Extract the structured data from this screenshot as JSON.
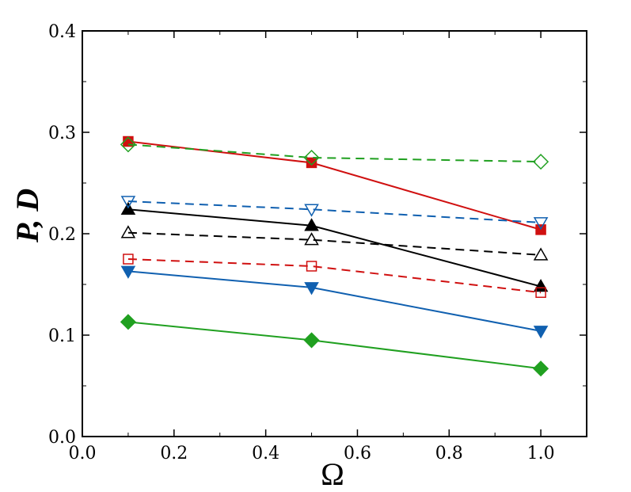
{
  "chart_data": {
    "type": "line",
    "title": "",
    "xlabel": "Ω",
    "ylabel": "P, D",
    "xlim": [
      0.0,
      1.1
    ],
    "ylim": [
      0.0,
      0.4
    ],
    "xticks": [
      0.0,
      0.2,
      0.4,
      0.6,
      0.8,
      1.0
    ],
    "yticks": [
      0.0,
      0.1,
      0.2,
      0.3,
      0.4
    ],
    "xtick_labels": [
      "0.0",
      "0.2",
      "0.4",
      "0.6",
      "0.8",
      "1.0"
    ],
    "ytick_labels": [
      "0.0",
      "0.1",
      "0.2",
      "0.3",
      "0.4"
    ],
    "x": [
      0.1,
      0.5,
      1.0
    ],
    "grid": false,
    "legend": "none",
    "series": [
      {
        "name": "red-solid-filled-square",
        "color": "#d01010",
        "dash": "solid",
        "marker": "square",
        "filled": true,
        "values": [
          0.291,
          0.27,
          0.204
        ]
      },
      {
        "name": "black-solid-filled-triangle-up",
        "color": "#000000",
        "dash": "solid",
        "marker": "triangle-up",
        "filled": true,
        "values": [
          0.224,
          0.208,
          0.148
        ]
      },
      {
        "name": "blue-solid-filled-triangle-down",
        "color": "#1060b0",
        "dash": "solid",
        "marker": "triangle-down",
        "filled": true,
        "values": [
          0.163,
          0.147,
          0.104
        ]
      },
      {
        "name": "green-solid-filled-diamond",
        "color": "#20a020",
        "dash": "solid",
        "marker": "diamond",
        "filled": true,
        "values": [
          0.113,
          0.095,
          0.067
        ]
      },
      {
        "name": "green-dashed-open-diamond",
        "color": "#20a020",
        "dash": "dashed",
        "marker": "diamond",
        "filled": false,
        "values": [
          0.288,
          0.275,
          0.271
        ]
      },
      {
        "name": "blue-dashed-open-triangle-down",
        "color": "#1060b0",
        "dash": "dashed",
        "marker": "triangle-down",
        "filled": false,
        "values": [
          0.232,
          0.224,
          0.211
        ]
      },
      {
        "name": "black-dashed-open-triangle-up",
        "color": "#000000",
        "dash": "dashed",
        "marker": "triangle-up",
        "filled": false,
        "values": [
          0.201,
          0.194,
          0.179
        ]
      },
      {
        "name": "red-dashed-open-square",
        "color": "#d01010",
        "dash": "dashed",
        "marker": "square",
        "filled": false,
        "values": [
          0.175,
          0.168,
          0.142
        ]
      }
    ]
  }
}
